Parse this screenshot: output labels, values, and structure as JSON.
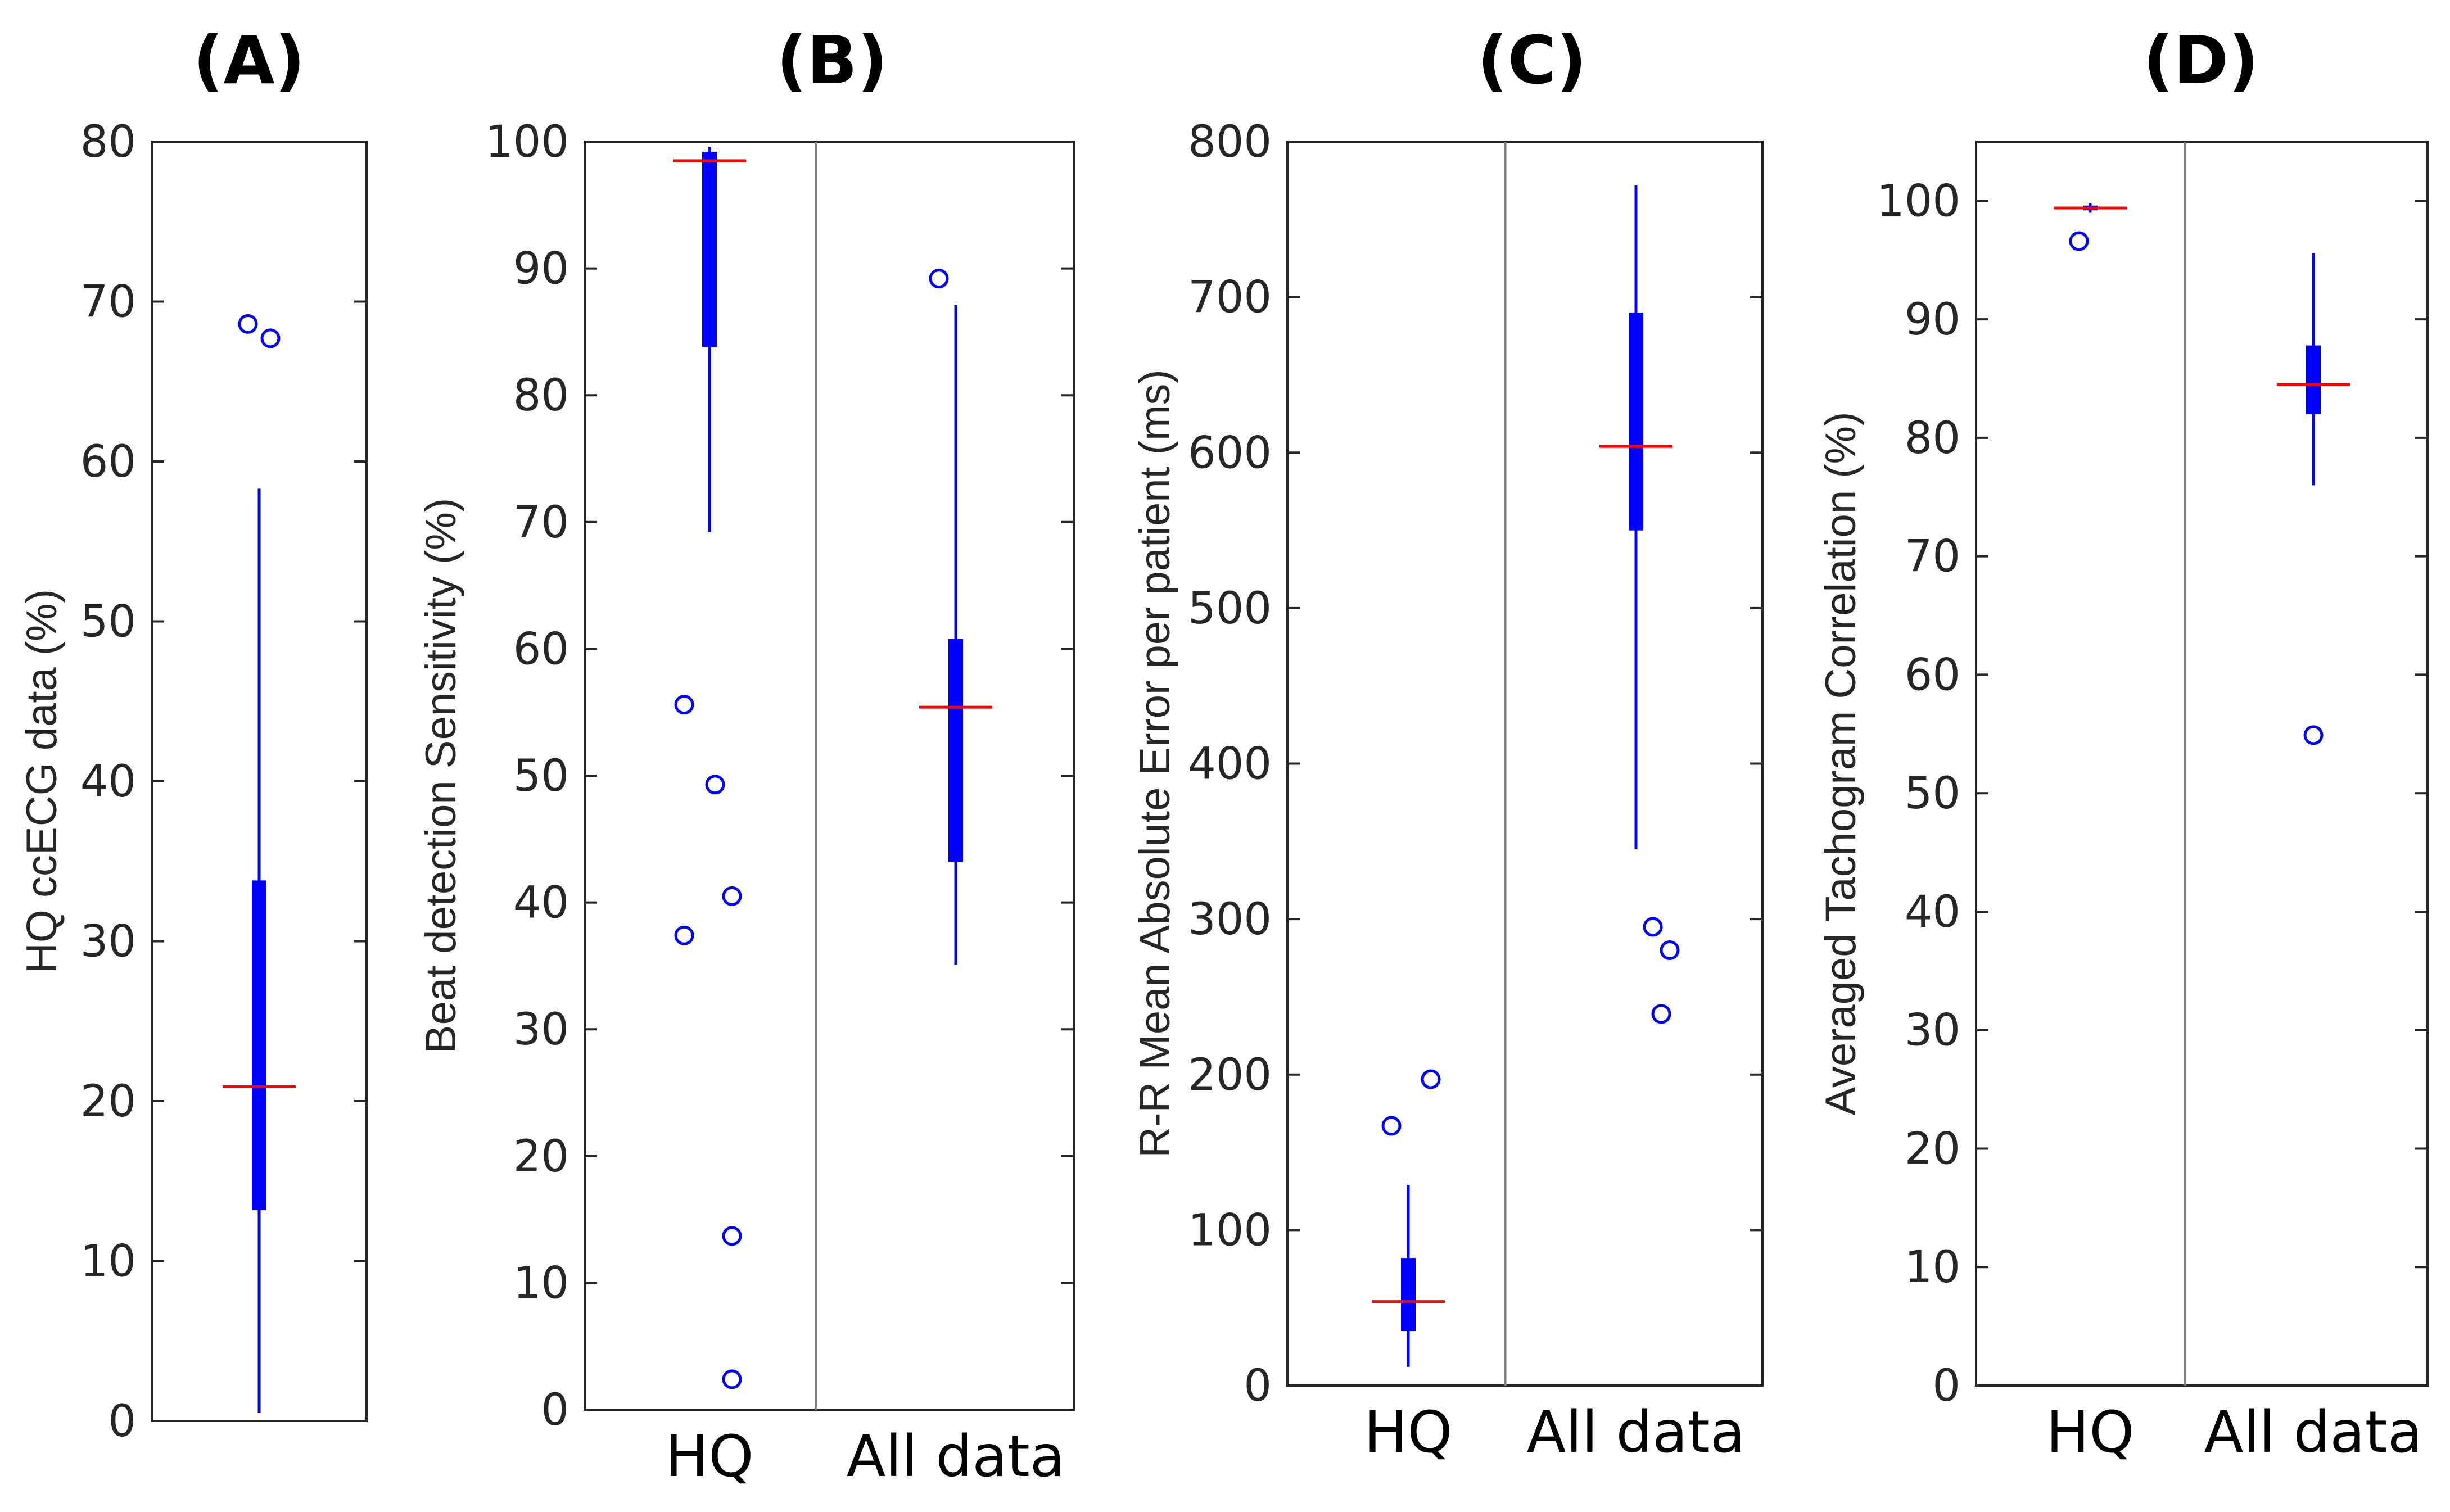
{
  "chart_data": [
    {
      "type": "boxplot",
      "panel": "(A)",
      "title": "(A)",
      "ylabel": "HQ ccECG data (%)",
      "ylim": [
        0,
        80
      ],
      "yticks": [
        0,
        10,
        20,
        30,
        40,
        50,
        60,
        70,
        80
      ],
      "categories": [
        ""
      ],
      "boxes": [
        {
          "category": "",
          "whisker_low": 0.5,
          "q1": 13.2,
          "median": 20.9,
          "q3": 33.8,
          "whisker_high": 58.3,
          "outliers": [
            68.6,
            67.7
          ]
        }
      ]
    },
    {
      "type": "boxplot",
      "panel": "(B)",
      "title": "(B)",
      "ylabel": "Beat detection Sensitivity (%)",
      "ylim": [
        0,
        100
      ],
      "yticks": [
        0,
        10,
        20,
        30,
        40,
        50,
        60,
        70,
        80,
        90,
        100
      ],
      "categories": [
        "HQ",
        "All data"
      ],
      "boxes": [
        {
          "category": "HQ",
          "whisker_low": 69.2,
          "q1": 83.8,
          "median": 98.5,
          "q3": 99.2,
          "whisker_high": 99.6,
          "outliers": [
            55.6,
            49.3,
            37.4,
            40.5,
            13.7,
            2.4
          ]
        },
        {
          "category": "All data",
          "whisker_low": 35.1,
          "q1": 43.2,
          "median": 55.4,
          "q3": 60.8,
          "whisker_high": 87.1,
          "outliers": [
            89.2
          ]
        }
      ]
    },
    {
      "type": "boxplot",
      "panel": "(C)",
      "title": "(C)",
      "ylabel": "R-R Mean Absolute Error per patient (ms)",
      "ylim": [
        0,
        800
      ],
      "yticks": [
        0,
        100,
        200,
        300,
        400,
        500,
        600,
        700,
        800
      ],
      "categories": [
        "HQ",
        "All data"
      ],
      "boxes": [
        {
          "category": "HQ",
          "whisker_low": 12,
          "q1": 35,
          "median": 54,
          "q3": 82,
          "whisker_high": 129,
          "outliers": [
            167,
            197
          ]
        },
        {
          "category": "All data",
          "whisker_low": 345,
          "q1": 550,
          "median": 604,
          "q3": 690,
          "whisker_high": 772,
          "outliers": [
            295,
            280,
            239
          ]
        }
      ]
    },
    {
      "type": "boxplot",
      "panel": "(D)",
      "title": "(D)",
      "ylabel": "Averaged Tachogram Correlation (%)",
      "ylim": [
        0,
        105
      ],
      "yticks": [
        0,
        10,
        20,
        30,
        40,
        50,
        60,
        70,
        80,
        90,
        100
      ],
      "categories": [
        "HQ",
        "All data"
      ],
      "boxes": [
        {
          "category": "HQ",
          "whisker_low": 99.0,
          "q1": 99.2,
          "median": 99.4,
          "q3": 99.6,
          "whisker_high": 99.8,
          "outliers": [
            96.6
          ]
        },
        {
          "category": "All data",
          "whisker_low": 76.0,
          "q1": 82.0,
          "median": 84.5,
          "q3": 87.8,
          "whisker_high": 95.6,
          "outliers": [
            54.9
          ]
        }
      ]
    }
  ],
  "colors": {
    "box": "#0000ff",
    "median": "#ff0000",
    "axis": "#262626",
    "divider": "#808080"
  }
}
